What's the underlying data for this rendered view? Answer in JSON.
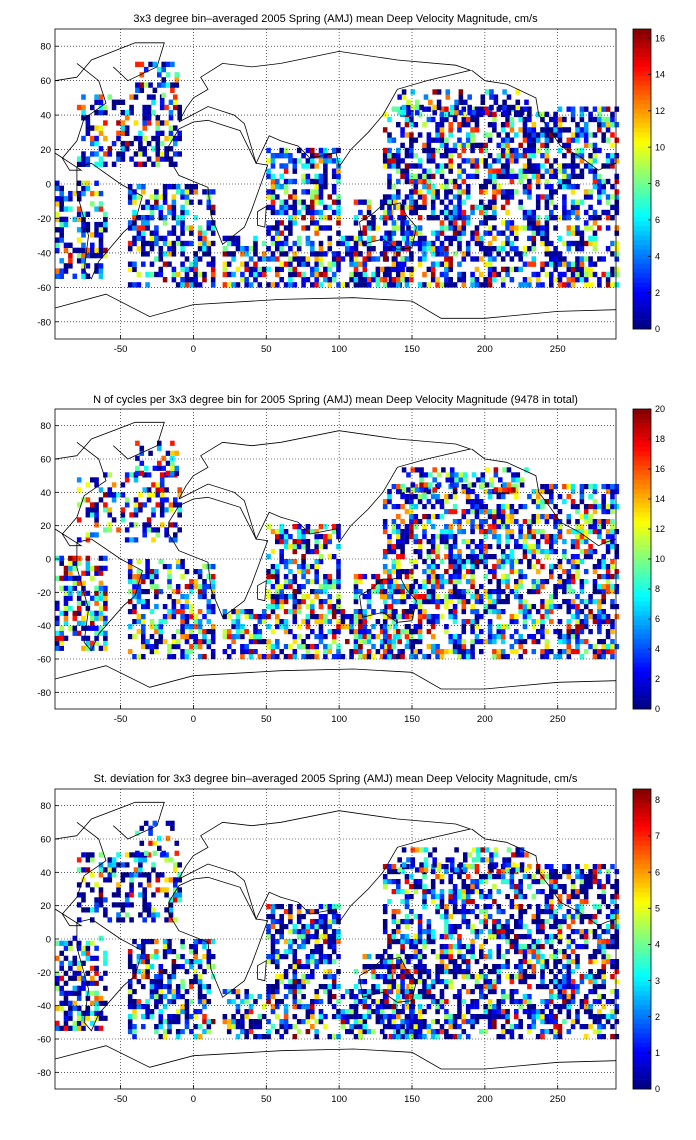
{
  "chart_data": [
    {
      "type": "heatmap",
      "title": "3x3 degree bin–averaged 2005 Spring (AMJ) mean Deep Velocity Magnitude, cm/s",
      "xlabel": "",
      "ylabel": "",
      "xlim": [
        -95,
        290
      ],
      "ylim": [
        -90,
        90
      ],
      "xticks": [
        -50,
        0,
        50,
        100,
        150,
        200,
        250
      ],
      "yticks": [
        -80,
        -60,
        -40,
        -20,
        0,
        20,
        40,
        60,
        80
      ],
      "grid": true,
      "colormap": "jet",
      "colorbar": {
        "range": [
          0,
          16.5
        ],
        "ticks": [
          0,
          2,
          4,
          6,
          8,
          10,
          12,
          14,
          16
        ],
        "placement": "right"
      }
    },
    {
      "type": "heatmap",
      "title": "N of cycles per 3x3 degree bin for 2005 Spring (AMJ) mean Deep Velocity Magnitude (9478 in total)",
      "xlabel": "",
      "ylabel": "",
      "xlim": [
        -95,
        290
      ],
      "ylim": [
        -90,
        90
      ],
      "xticks": [
        -50,
        0,
        50,
        100,
        150,
        200,
        250
      ],
      "yticks": [
        -80,
        -60,
        -40,
        -20,
        0,
        20,
        40,
        60,
        80
      ],
      "grid": true,
      "colormap": "jet",
      "colorbar": {
        "range": [
          0,
          20
        ],
        "ticks": [
          0,
          2,
          4,
          6,
          8,
          10,
          12,
          14,
          16,
          18,
          20
        ],
        "placement": "right"
      }
    },
    {
      "type": "heatmap",
      "title": "St. deviation for 3x3 degree bin–averaged 2005 Spring (AMJ) mean Deep Velocity Magnitude, cm/s",
      "xlabel": "",
      "ylabel": "",
      "xlim": [
        -95,
        290
      ],
      "ylim": [
        -90,
        90
      ],
      "xticks": [
        -50,
        0,
        50,
        100,
        150,
        200,
        250
      ],
      "yticks": [
        -80,
        -60,
        -40,
        -20,
        0,
        20,
        40,
        60,
        80
      ],
      "grid": true,
      "colormap": "jet",
      "colorbar": {
        "range": [
          0,
          8.3
        ],
        "ticks": [
          0,
          1,
          2,
          3,
          4,
          5,
          6,
          7,
          8
        ],
        "placement": "right"
      }
    }
  ]
}
